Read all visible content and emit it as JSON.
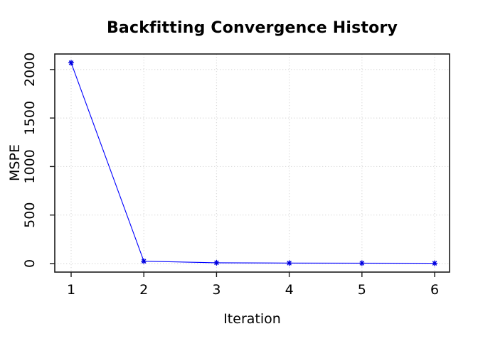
{
  "chart_data": {
    "type": "line",
    "title": "Backfitting Convergence History",
    "xlabel": "Iteration",
    "ylabel": "MSPE",
    "x": [
      1,
      2,
      3,
      4,
      5,
      6
    ],
    "series": [
      {
        "name": "MSPE",
        "values": [
          2070,
          24,
          8,
          5,
          4,
          3
        ]
      }
    ],
    "xticks": [
      1,
      2,
      3,
      4,
      5,
      6
    ],
    "yticks": [
      0,
      500,
      1000,
      1500,
      2000
    ],
    "xlim": [
      0.775,
      6.205
    ],
    "ylim": [
      -88,
      2160
    ],
    "grid": "dotted",
    "legend": "none",
    "marker": "asterisk",
    "colors": {
      "line": "#0000ff",
      "marker": "#0000e0",
      "grid": "#dcdcdc",
      "axis": "#1a1a1a",
      "text": "#000000",
      "background": "#ffffff"
    }
  }
}
